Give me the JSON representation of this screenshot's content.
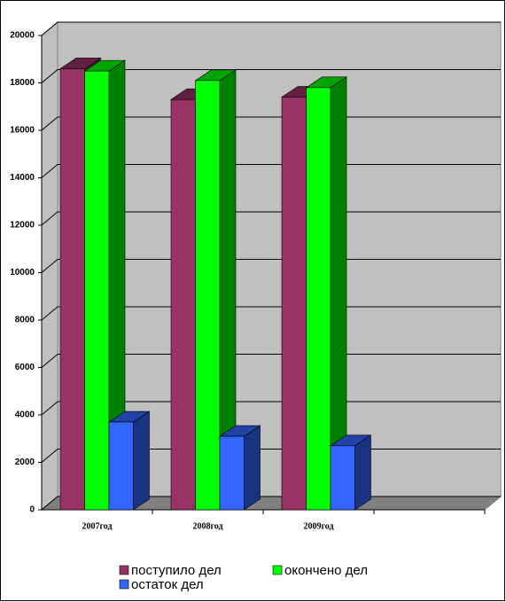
{
  "chart_data": {
    "type": "bar3d",
    "categories": [
      "2007год",
      "2008год",
      "2009год",
      null
    ],
    "series": [
      {
        "name": "поступило дел",
        "color": "#993366",
        "values": [
          18600,
          17300,
          17400,
          null
        ]
      },
      {
        "name": "окончено дел",
        "color": "#00ff00",
        "values": [
          18500,
          18100,
          17800,
          null
        ]
      },
      {
        "name": "остаток дел",
        "color": "#3366ff",
        "values": [
          3700,
          3100,
          2700,
          null
        ]
      }
    ],
    "ylim": [
      0,
      20000
    ],
    "yticks": [
      0,
      2000,
      4000,
      6000,
      8000,
      10000,
      12000,
      14000,
      16000,
      18000,
      20000
    ],
    "grid": true
  }
}
